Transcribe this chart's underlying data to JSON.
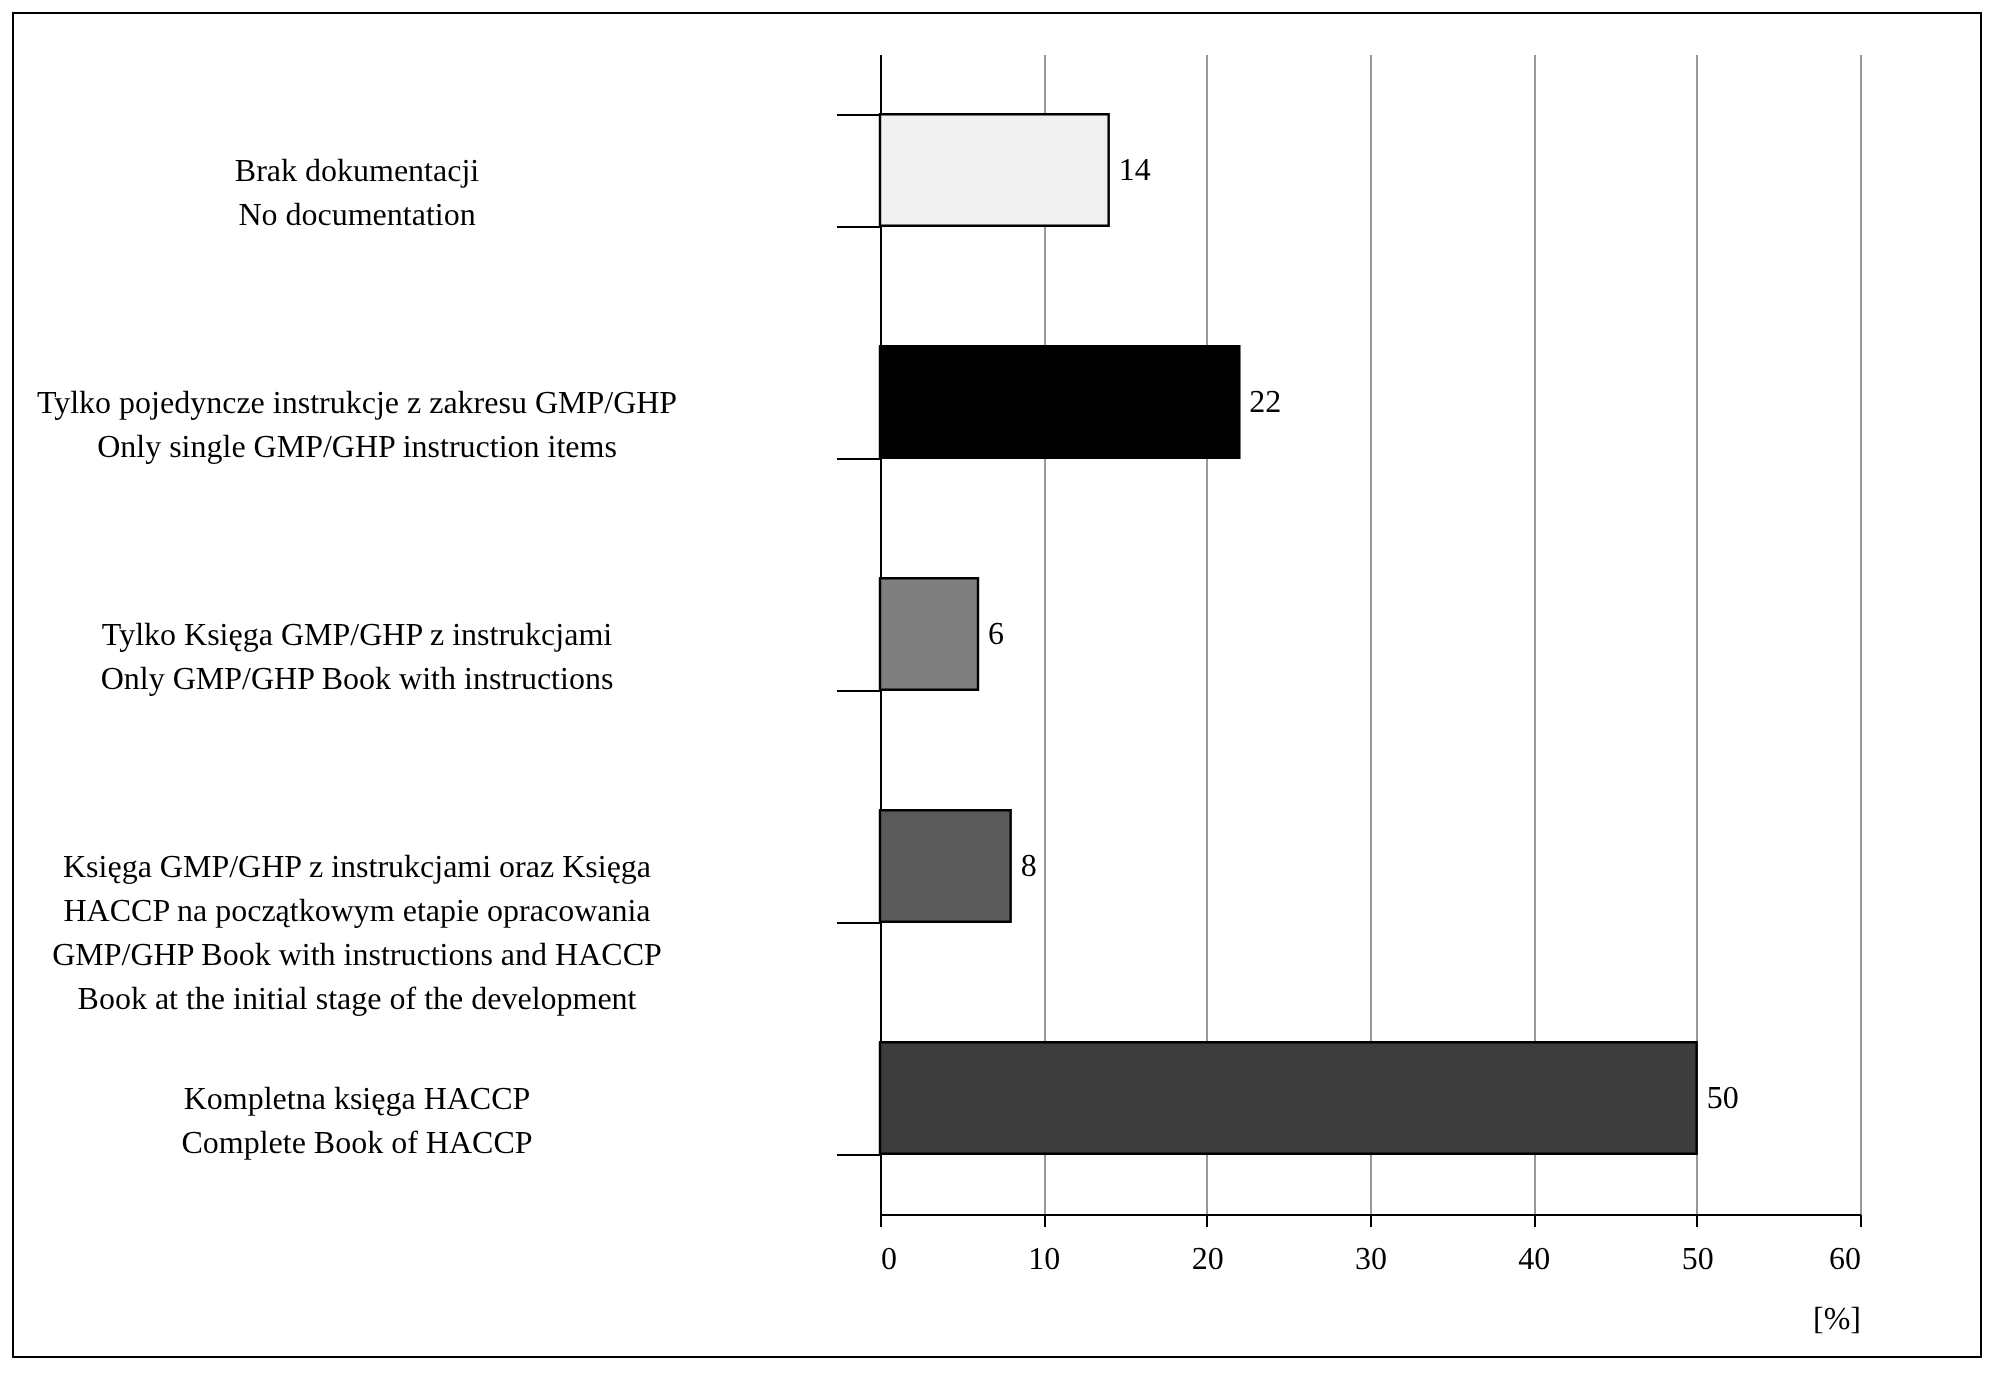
{
  "chart_data": {
    "type": "bar",
    "orientation": "horizontal",
    "categories": [
      "Brak dokumentacji\nNo documentation",
      "Tylko pojedyncze instrukcje z zakresu GMP/GHP\nOnly single GMP/GHP instruction items",
      "Tylko Księga GMP/GHP z instrukcjami\nOnly GMP/GHP Book with instructions",
      "Księga GMP/GHP z instrukcjami oraz Księga\nHACCP na początkowym etapie opracowania\nGMP/GHP Book with instructions and HACCP\nBook at the initial stage of the development",
      "Kompletna księga HACCP\nComplete Book of HACCP"
    ],
    "values": [
      14,
      22,
      6,
      8,
      50
    ],
    "colors": [
      "#f0f0f0",
      "#000000",
      "#7f7f7f",
      "#5a5a5a",
      "#3c3c3c"
    ],
    "xlabel": "[%]",
    "xlim": [
      0,
      60
    ],
    "xticks": [
      0,
      10,
      20,
      30,
      40,
      50,
      60
    ],
    "grid": "x",
    "data_labels": true
  }
}
